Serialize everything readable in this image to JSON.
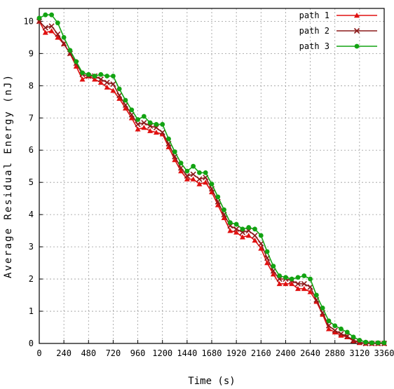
{
  "chart_data": {
    "type": "line",
    "xlabel": "Time (s)",
    "ylabel": "Average Residual Energy (nJ)",
    "xlim": [
      0,
      3360
    ],
    "ylim": [
      0,
      10.4
    ],
    "x_ticks": [
      0,
      240,
      480,
      720,
      960,
      1200,
      1440,
      1680,
      1920,
      2160,
      2400,
      2640,
      2880,
      3120,
      3360
    ],
    "y_ticks": [
      0,
      1,
      2,
      3,
      4,
      5,
      6,
      7,
      8,
      9,
      10
    ],
    "grid": true,
    "legend_position": "top-right",
    "series": [
      {
        "name": "path 1",
        "color": "#e01010",
        "marker": "triangle",
        "x": [
          0,
          60,
          120,
          180,
          240,
          300,
          360,
          420,
          480,
          540,
          600,
          660,
          720,
          780,
          840,
          900,
          960,
          1020,
          1080,
          1140,
          1200,
          1260,
          1320,
          1380,
          1440,
          1500,
          1560,
          1620,
          1680,
          1740,
          1800,
          1860,
          1920,
          1980,
          2040,
          2100,
          2160,
          2220,
          2280,
          2340,
          2400,
          2460,
          2520,
          2580,
          2640,
          2700,
          2760,
          2820,
          2880,
          2940,
          3000,
          3060,
          3120,
          3180,
          3240,
          3300,
          3360
        ],
        "y": [
          10.0,
          9.65,
          9.7,
          9.5,
          9.3,
          9.0,
          8.6,
          8.2,
          8.3,
          8.2,
          8.1,
          7.95,
          7.85,
          7.6,
          7.3,
          7.0,
          6.65,
          6.7,
          6.6,
          6.55,
          6.5,
          6.1,
          5.7,
          5.35,
          5.1,
          5.1,
          4.95,
          5.0,
          4.7,
          4.3,
          3.9,
          3.5,
          3.45,
          3.3,
          3.35,
          3.2,
          2.95,
          2.5,
          2.15,
          1.85,
          1.85,
          1.85,
          1.7,
          1.7,
          1.6,
          1.3,
          0.9,
          0.45,
          0.35,
          0.25,
          0.2,
          0.08,
          0.02,
          0.0,
          0.0,
          0.0,
          0.0
        ]
      },
      {
        "name": "path 2",
        "color": "#8b1a1a",
        "marker": "cross",
        "x": [
          0,
          60,
          120,
          180,
          240,
          300,
          360,
          420,
          480,
          540,
          600,
          660,
          720,
          780,
          840,
          900,
          960,
          1020,
          1080,
          1140,
          1200,
          1260,
          1320,
          1380,
          1440,
          1500,
          1560,
          1620,
          1680,
          1740,
          1800,
          1860,
          1920,
          1980,
          2040,
          2100,
          2160,
          2220,
          2280,
          2340,
          2400,
          2460,
          2520,
          2580,
          2640,
          2700,
          2760,
          2820,
          2880,
          2940,
          3000,
          3060,
          3120,
          3180,
          3240,
          3300,
          3360
        ],
        "y": [
          10.0,
          9.8,
          9.85,
          9.6,
          9.3,
          9.0,
          8.7,
          8.35,
          8.3,
          8.3,
          8.2,
          8.1,
          8.05,
          7.7,
          7.4,
          7.1,
          6.8,
          6.85,
          6.75,
          6.7,
          6.55,
          6.2,
          5.8,
          5.45,
          5.2,
          5.25,
          5.1,
          5.15,
          4.8,
          4.4,
          4.0,
          3.65,
          3.55,
          3.45,
          3.5,
          3.35,
          3.1,
          2.65,
          2.25,
          2.0,
          2.0,
          1.95,
          1.85,
          1.85,
          1.75,
          1.35,
          0.95,
          0.55,
          0.4,
          0.3,
          0.22,
          0.1,
          0.04,
          0.0,
          0.0,
          0.0,
          0.0
        ]
      },
      {
        "name": "path 3",
        "color": "#12a312",
        "marker": "circle",
        "x": [
          0,
          60,
          120,
          180,
          240,
          300,
          360,
          420,
          480,
          540,
          600,
          660,
          720,
          780,
          840,
          900,
          960,
          1020,
          1080,
          1140,
          1200,
          1260,
          1320,
          1380,
          1440,
          1500,
          1560,
          1620,
          1680,
          1740,
          1800,
          1860,
          1920,
          1980,
          2040,
          2100,
          2160,
          2220,
          2280,
          2340,
          2400,
          2460,
          2520,
          2580,
          2640,
          2700,
          2760,
          2820,
          2880,
          2940,
          3000,
          3060,
          3120,
          3180,
          3240,
          3300,
          3360
        ],
        "y": [
          10.1,
          10.2,
          10.2,
          9.95,
          9.5,
          9.1,
          8.75,
          8.4,
          8.35,
          8.3,
          8.35,
          8.3,
          8.3,
          7.9,
          7.55,
          7.25,
          6.95,
          7.05,
          6.85,
          6.8,
          6.8,
          6.35,
          5.95,
          5.6,
          5.35,
          5.5,
          5.3,
          5.3,
          4.95,
          4.55,
          4.15,
          3.75,
          3.7,
          3.55,
          3.6,
          3.55,
          3.35,
          2.85,
          2.4,
          2.1,
          2.05,
          2.0,
          2.05,
          2.1,
          2.0,
          1.5,
          1.1,
          0.7,
          0.55,
          0.45,
          0.35,
          0.2,
          0.1,
          0.04,
          0.02,
          0.02,
          0.02
        ]
      }
    ]
  }
}
